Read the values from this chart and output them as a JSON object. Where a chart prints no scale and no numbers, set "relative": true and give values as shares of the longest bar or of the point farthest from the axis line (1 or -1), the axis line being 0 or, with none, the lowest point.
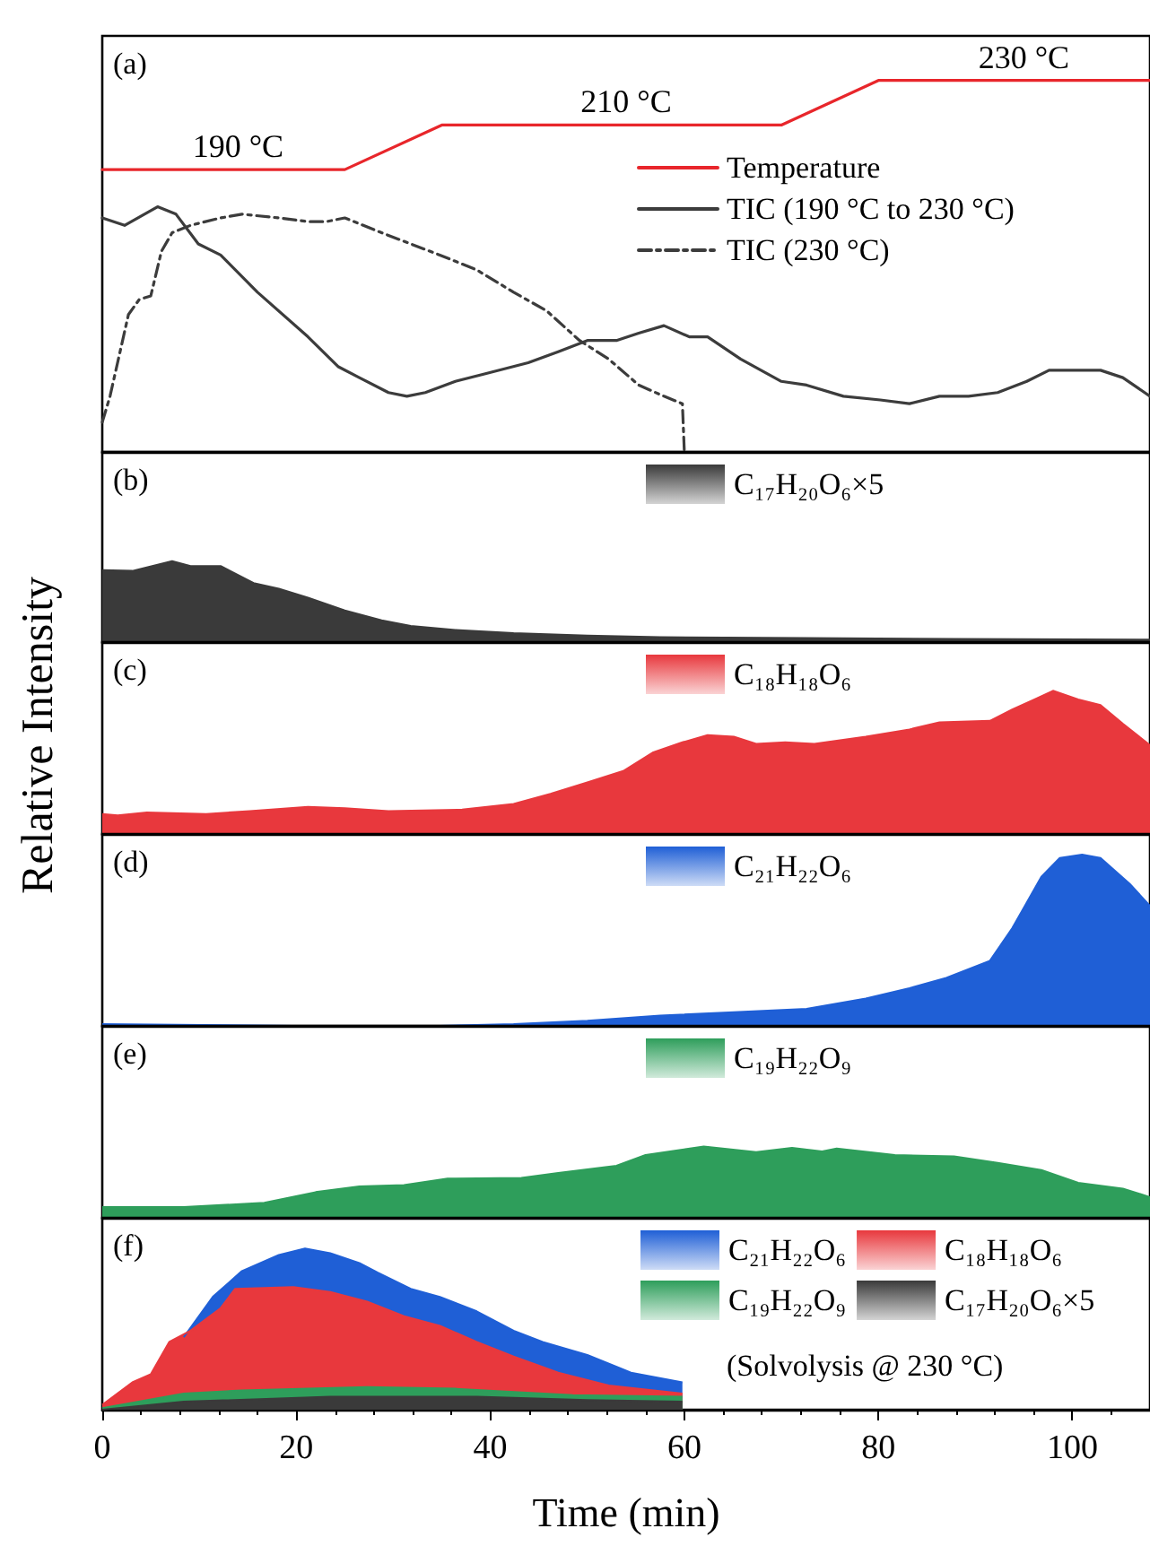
{
  "chart_data": [
    {
      "type": "line",
      "title": "(a)",
      "relative": true,
      "xlim": [
        0,
        108
      ],
      "xticks": [
        0,
        20,
        40,
        60,
        80,
        100
      ],
      "tick_labels": false,
      "legend": "right",
      "annotations": [
        {
          "text": "190 °C",
          "x": 14,
          "y": 0.76
        },
        {
          "text": "210 °C",
          "x": 54,
          "y": 0.88
        },
        {
          "text": "230 °C",
          "x": 95,
          "y": 1
        }
      ],
      "series": [
        {
          "name": "Temperature",
          "color": "#e8262b",
          "line_style": "solid",
          "x": [
            0,
            25,
            35,
            70,
            80,
            108
          ],
          "values": [
            0.76,
            0.76,
            0.88,
            0.88,
            1,
            1
          ]
        },
        {
          "name": "TIC (190 °C to 230 °C)",
          "color": "#3c3c3c",
          "line_style": "solid",
          "x": [
            0,
            2.3,
            5.7,
            7.6,
            9.9,
            12.2,
            16,
            21.2,
            24.3,
            26.5,
            29.5,
            31.4,
            33.3,
            36.4,
            39.4,
            43.9,
            47,
            50,
            53,
            55.3,
            57.9,
            60.5,
            62.4,
            65.8,
            70,
            72.6,
            76.4,
            80.2,
            83.2,
            86.3,
            89.3,
            92.3,
            95.3,
            97.6,
            100.6,
            102.9,
            105.2,
            108
          ],
          "values": [
            0.63,
            0.61,
            0.66,
            0.64,
            0.56,
            0.53,
            0.43,
            0.31,
            0.23,
            0.2,
            0.16,
            0.15,
            0.16,
            0.19,
            0.21,
            0.24,
            0.27,
            0.3,
            0.3,
            0.32,
            0.34,
            0.31,
            0.31,
            0.25,
            0.19,
            0.18,
            0.15,
            0.14,
            0.13,
            0.15,
            0.15,
            0.16,
            0.19,
            0.22,
            0.22,
            0.22,
            0.2,
            0.15
          ]
        },
        {
          "name": "TIC (230 °C)",
          "color": "#3c3c3c",
          "line_style": "dashed",
          "x": [
            0,
            0.8,
            2.7,
            3.8,
            5,
            6.1,
            7.2,
            9.1,
            12.2,
            14.4,
            18.2,
            21.2,
            23.1,
            25,
            28.8,
            34.8,
            38.6,
            42.4,
            45.8,
            49.2,
            52.2,
            55.3,
            57.9,
            59.8,
            60
          ],
          "values": [
            0.08,
            0.15,
            0.37,
            0.41,
            0.42,
            0.54,
            0.59,
            0.61,
            0.63,
            0.64,
            0.63,
            0.62,
            0.62,
            0.63,
            0.59,
            0.53,
            0.49,
            0.43,
            0.38,
            0.3,
            0.25,
            0.18,
            0.15,
            0.13,
            0
          ]
        }
      ]
    },
    {
      "type": "area",
      "title": "(b)",
      "relative": true,
      "xlim": [
        0,
        108
      ],
      "xticks": [
        0,
        20,
        40,
        60,
        80,
        100
      ],
      "tick_labels": false,
      "legend": "top",
      "series": [
        {
          "name": "C₁₇H₂₀O₆×5",
          "color": "#3a3a3a",
          "x": [
            0,
            3.1,
            7.2,
            9.1,
            12.2,
            15.6,
            18.2,
            21.2,
            25,
            28.8,
            31.8,
            36.4,
            42.4,
            50,
            57.5,
            72.6,
            87.8,
            108
          ],
          "values": [
            0.89,
            0.88,
            1,
            0.94,
            0.94,
            0.73,
            0.66,
            0.55,
            0.39,
            0.27,
            0.2,
            0.15,
            0.11,
            0.08,
            0.06,
            0.05,
            0.04,
            0.03
          ]
        }
      ]
    },
    {
      "type": "area",
      "title": "(c)",
      "ylabel": "Relative Intensity",
      "relative": true,
      "xlim": [
        0,
        108
      ],
      "xticks": [
        0,
        20,
        40,
        60,
        80,
        100
      ],
      "tick_labels": false,
      "legend": "top",
      "series": [
        {
          "name": "C₁₈H₁₈O₆",
          "color": "#e8383d",
          "x": [
            0,
            1.6,
            4.6,
            10.7,
            15.2,
            21.2,
            25,
            29.5,
            37.1,
            42.4,
            46.2,
            50,
            53.7,
            56.8,
            59.8,
            62.4,
            65.1,
            67.4,
            70.4,
            73.4,
            78.7,
            83.2,
            86.3,
            91.5,
            93.8,
            96.1,
            98,
            100.6,
            102.9,
            105.2,
            108
          ],
          "values": [
            0.14,
            0.13,
            0.15,
            0.14,
            0.16,
            0.19,
            0.18,
            0.16,
            0.17,
            0.21,
            0.28,
            0.36,
            0.44,
            0.57,
            0.64,
            0.69,
            0.68,
            0.63,
            0.64,
            0.63,
            0.68,
            0.73,
            0.78,
            0.79,
            0.87,
            0.94,
            1,
            0.94,
            0.9,
            0.77,
            0.62
          ]
        }
      ]
    },
    {
      "type": "area",
      "title": "(d)",
      "relative": true,
      "xlim": [
        0,
        108
      ],
      "xticks": [
        0,
        20,
        40,
        60,
        80,
        100
      ],
      "tick_labels": false,
      "legend": "top",
      "series": [
        {
          "name": "C₂₁H₂₂O₆",
          "color": "#1f5fd6",
          "x": [
            0,
            19.7,
            34.8,
            42.4,
            50,
            57.5,
            65.1,
            72.6,
            78.7,
            83.2,
            87,
            91.5,
            93.8,
            96.8,
            98.7,
            101,
            102.9,
            105.9,
            108
          ],
          "values": [
            0.01,
            0,
            0,
            0.01,
            0.03,
            0.06,
            0.08,
            0.1,
            0.16,
            0.22,
            0.28,
            0.38,
            0.57,
            0.87,
            0.98,
            1,
            0.98,
            0.83,
            0.7
          ]
        }
      ]
    },
    {
      "type": "area",
      "title": "(e)",
      "relative": true,
      "xlim": [
        0,
        108
      ],
      "xticks": [
        0,
        20,
        40,
        60,
        80,
        100
      ],
      "tick_labels": false,
      "legend": "top",
      "series": [
        {
          "name": "C₁₉H₂₂O₉",
          "color": "#2e9e5b",
          "x": [
            0,
            8.4,
            16.7,
            22,
            26.5,
            31.1,
            35.6,
            43.2,
            47,
            53,
            56,
            62,
            67.4,
            71.1,
            74.2,
            75.7,
            81.7,
            87.8,
            92.3,
            96.8,
            100.6,
            105.2,
            108
          ],
          "values": [
            0.15,
            0.15,
            0.21,
            0.36,
            0.44,
            0.46,
            0.55,
            0.56,
            0.63,
            0.73,
            0.88,
            1,
            0.92,
            0.98,
            0.93,
            0.97,
            0.88,
            0.86,
            0.77,
            0.67,
            0.49,
            0.41,
            0.29
          ]
        }
      ]
    },
    {
      "type": "area",
      "title": "(f)",
      "xlabel": "Time (min)",
      "relative": true,
      "xlim": [
        0,
        108
      ],
      "xticks": [
        0,
        20,
        40,
        60,
        80,
        100
      ],
      "tick_labels": "x",
      "legend": "top right",
      "annotations": [
        "(Solvolysis @ 230 °C)"
      ],
      "series": [
        {
          "name": "C₂₁H₂₂O₆",
          "color": "#1f5fd6",
          "x": [
            8.4,
            11.4,
            14.4,
            18.2,
            20.9,
            23.5,
            26.5,
            28.4,
            31.8,
            34.8,
            38.6,
            42.4,
            45.4,
            50,
            54.5,
            59.8
          ],
          "values": [
            0.45,
            0.7,
            0.86,
            0.96,
            1,
            0.97,
            0.91,
            0.85,
            0.75,
            0.7,
            0.61,
            0.49,
            0.42,
            0.34,
            0.23,
            0.17
          ]
        },
        {
          "name": "C₁₈H₁₈O₆",
          "color": "#e8383d",
          "x": [
            0,
            3.1,
            5,
            6.9,
            9.1,
            12.2,
            13.7,
            19.7,
            23.5,
            27.3,
            31.1,
            34.8,
            38.6,
            42.4,
            47,
            52.2,
            59.8
          ],
          "values": [
            0.03,
            0.17,
            0.22,
            0.42,
            0.49,
            0.63,
            0.75,
            0.76,
            0.73,
            0.67,
            0.58,
            0.52,
            0.42,
            0.33,
            0.23,
            0.15,
            0.1
          ]
        },
        {
          "name": "C₁₉H₂₂O₉",
          "color": "#2e9e5b",
          "x": [
            0,
            8.4,
            14.4,
            27.3,
            36.4,
            48.5,
            59.8
          ],
          "values": [
            0.01,
            0.1,
            0.12,
            0.14,
            0.13,
            0.09,
            0.08
          ]
        },
        {
          "name": "C₁₇H₂₀O₆×5",
          "color": "#3a3a3a",
          "x": [
            0,
            8.4,
            23.5,
            38.6,
            50,
            59.8
          ],
          "values": [
            0,
            0.05,
            0.08,
            0.08,
            0.06,
            0.05
          ]
        }
      ]
    }
  ]
}
